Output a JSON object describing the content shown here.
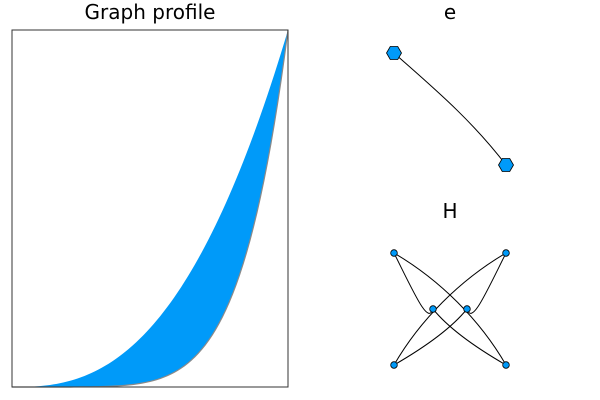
{
  "profile": {
    "title": "Graph profile",
    "fill_color": "#009af9",
    "edge_line_color": "#8a8a8a",
    "frame_color": "#333333",
    "band_upper_exponent": 2.6,
    "band_lower_exponent": 6.0
  },
  "graph_e": {
    "title": "e",
    "node_shape": "hexagon",
    "node_color": "#009af9",
    "node_count": 2,
    "edge_count": 1
  },
  "graph_h": {
    "title": "H",
    "node_shape": "circle",
    "node_color": "#009af9",
    "node_count": 6,
    "edge_count": 6
  }
}
